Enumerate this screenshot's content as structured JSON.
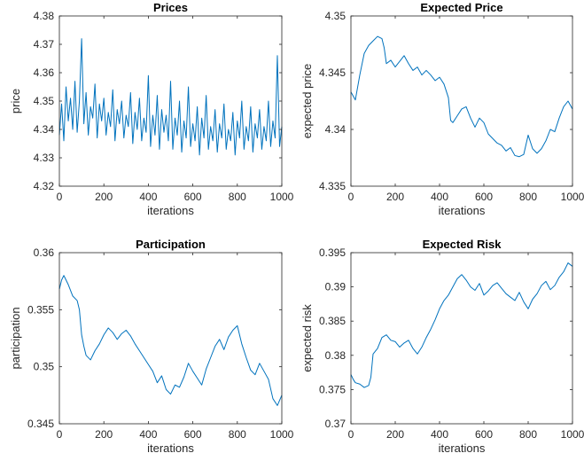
{
  "figure": {
    "line_color": "#0072BD",
    "background": "#ffffff"
  },
  "chart_data": [
    {
      "type": "line",
      "title": "Prices",
      "xlabel": "iterations",
      "ylabel": "price",
      "xlim": [
        0,
        1000
      ],
      "ylim": [
        4.32,
        4.38
      ],
      "xticks": [
        0,
        200,
        400,
        600,
        800,
        1000
      ],
      "xtick_labels": [
        "0",
        "200",
        "400",
        "600",
        "800",
        "1000"
      ],
      "yticks": [
        4.32,
        4.33,
        4.34,
        4.35,
        4.36,
        4.37,
        4.38
      ],
      "ytick_labels": [
        "4.32",
        "4.33",
        "4.34",
        "4.35",
        "4.36",
        "4.37",
        "4.38"
      ],
      "grid": false,
      "series": [
        {
          "x": [
            0,
            10,
            20,
            30,
            40,
            50,
            60,
            70,
            80,
            90,
            100,
            110,
            120,
            130,
            140,
            150,
            160,
            170,
            180,
            190,
            200,
            210,
            220,
            230,
            240,
            250,
            260,
            270,
            280,
            290,
            300,
            310,
            320,
            330,
            340,
            350,
            360,
            370,
            380,
            390,
            400,
            410,
            420,
            430,
            440,
            450,
            460,
            470,
            480,
            490,
            500,
            510,
            520,
            530,
            540,
            550,
            560,
            570,
            580,
            590,
            600,
            610,
            620,
            630,
            640,
            650,
            660,
            670,
            680,
            690,
            700,
            710,
            720,
            730,
            740,
            750,
            760,
            770,
            780,
            790,
            800,
            810,
            820,
            830,
            840,
            850,
            860,
            870,
            880,
            890,
            900,
            910,
            920,
            930,
            940,
            950,
            960,
            970,
            980,
            990,
            1000
          ],
          "values": [
            4.338,
            4.349,
            4.336,
            4.355,
            4.343,
            4.351,
            4.34,
            4.357,
            4.339,
            4.35,
            4.372,
            4.342,
            4.353,
            4.338,
            4.348,
            4.344,
            4.356,
            4.337,
            4.349,
            4.343,
            4.351,
            4.338,
            4.346,
            4.341,
            4.354,
            4.336,
            4.347,
            4.342,
            4.35,
            4.337,
            4.345,
            4.341,
            4.353,
            4.335,
            4.346,
            4.34,
            4.351,
            4.336,
            4.344,
            4.339,
            4.359,
            4.334,
            4.345,
            4.338,
            4.352,
            4.333,
            4.347,
            4.339,
            4.345,
            4.336,
            4.357,
            4.333,
            4.344,
            4.338,
            4.35,
            4.332,
            4.343,
            4.337,
            4.355,
            4.334,
            4.342,
            4.336,
            4.348,
            4.331,
            4.344,
            4.337,
            4.352,
            4.333,
            4.341,
            4.336,
            4.347,
            4.332,
            4.342,
            4.337,
            4.349,
            4.333,
            4.34,
            4.336,
            4.346,
            4.331,
            4.343,
            4.337,
            4.35,
            4.333,
            4.341,
            4.336,
            4.348,
            4.332,
            4.342,
            4.337,
            4.347,
            4.333,
            4.341,
            4.336,
            4.35,
            4.334,
            4.343,
            4.337,
            4.366,
            4.334,
            4.341
          ]
        }
      ]
    },
    {
      "type": "line",
      "title": "Expected Price",
      "xlabel": "iterations",
      "ylabel": "expected price",
      "xlim": [
        0,
        1000
      ],
      "ylim": [
        4.335,
        4.35
      ],
      "xticks": [
        0,
        200,
        400,
        600,
        800,
        1000
      ],
      "xtick_labels": [
        "0",
        "200",
        "400",
        "600",
        "800",
        "1000"
      ],
      "yticks": [
        4.335,
        4.34,
        4.345,
        4.35
      ],
      "ytick_labels": [
        "4.335",
        "4.34",
        "4.345",
        "4.35"
      ],
      "grid": false,
      "series": [
        {
          "x": [
            0,
            20,
            40,
            60,
            80,
            100,
            120,
            140,
            150,
            160,
            180,
            200,
            220,
            240,
            260,
            280,
            300,
            320,
            340,
            360,
            380,
            400,
            420,
            440,
            450,
            460,
            480,
            500,
            520,
            540,
            560,
            580,
            600,
            620,
            640,
            660,
            680,
            700,
            720,
            740,
            760,
            780,
            800,
            820,
            840,
            860,
            880,
            900,
            920,
            940,
            960,
            980,
            1000
          ],
          "values": [
            4.3433,
            4.3426,
            4.3448,
            4.3467,
            4.3474,
            4.3478,
            4.3482,
            4.348,
            4.3472,
            4.3458,
            4.3461,
            4.3455,
            4.346,
            4.3465,
            4.3458,
            4.3452,
            4.3455,
            4.3448,
            4.3452,
            4.3448,
            4.3443,
            4.3446,
            4.344,
            4.3428,
            4.3408,
            4.3406,
            4.3412,
            4.3418,
            4.342,
            4.341,
            4.3402,
            4.341,
            4.3406,
            4.3396,
            4.3392,
            4.3388,
            4.3386,
            4.3381,
            4.3384,
            4.3377,
            4.3376,
            4.3378,
            4.3395,
            4.3383,
            4.3379,
            4.3383,
            4.339,
            4.34,
            4.3398,
            4.341,
            4.342,
            4.3425,
            4.3418
          ]
        }
      ]
    },
    {
      "type": "line",
      "title": "Participation",
      "xlabel": "iterations",
      "ylabel": "participation",
      "xlim": [
        0,
        1000
      ],
      "ylim": [
        0.345,
        0.36
      ],
      "xticks": [
        0,
        200,
        400,
        600,
        800,
        1000
      ],
      "xtick_labels": [
        "0",
        "200",
        "400",
        "600",
        "800",
        "1000"
      ],
      "yticks": [
        0.345,
        0.35,
        0.355,
        0.36
      ],
      "ytick_labels": [
        "0.345",
        "0.35",
        "0.355",
        "0.36"
      ],
      "grid": false,
      "series": [
        {
          "x": [
            0,
            10,
            20,
            40,
            60,
            80,
            90,
            100,
            110,
            120,
            140,
            160,
            180,
            200,
            220,
            240,
            260,
            280,
            300,
            320,
            340,
            360,
            380,
            400,
            420,
            440,
            460,
            480,
            500,
            520,
            540,
            560,
            580,
            600,
            620,
            640,
            660,
            680,
            700,
            720,
            740,
            760,
            780,
            800,
            820,
            840,
            860,
            880,
            900,
            920,
            940,
            960,
            980,
            1000
          ],
          "values": [
            0.3568,
            0.3576,
            0.358,
            0.3572,
            0.3562,
            0.3558,
            0.355,
            0.3528,
            0.3518,
            0.351,
            0.3506,
            0.3514,
            0.352,
            0.3528,
            0.3534,
            0.353,
            0.3524,
            0.3529,
            0.3532,
            0.3527,
            0.352,
            0.3514,
            0.3508,
            0.3502,
            0.3496,
            0.3486,
            0.3492,
            0.348,
            0.3476,
            0.3484,
            0.3482,
            0.3491,
            0.3503,
            0.3496,
            0.349,
            0.3484,
            0.3498,
            0.3508,
            0.3518,
            0.3524,
            0.3515,
            0.3526,
            0.3532,
            0.3536,
            0.352,
            0.3508,
            0.3497,
            0.3493,
            0.3503,
            0.3496,
            0.3489,
            0.3472,
            0.3466,
            0.3475
          ]
        }
      ]
    },
    {
      "type": "line",
      "title": "Expected Risk",
      "xlabel": "iterations",
      "ylabel": "expected risk",
      "xlim": [
        0,
        1000
      ],
      "ylim": [
        0.37,
        0.395
      ],
      "xticks": [
        0,
        200,
        400,
        600,
        800,
        1000
      ],
      "xtick_labels": [
        "0",
        "200",
        "400",
        "600",
        "800",
        "1000"
      ],
      "yticks": [
        0.37,
        0.375,
        0.38,
        0.385,
        0.39,
        0.395
      ],
      "ytick_labels": [
        "0.37",
        "0.375",
        "0.38",
        "0.385",
        "0.39",
        "0.395"
      ],
      "grid": false,
      "series": [
        {
          "x": [
            0,
            10,
            20,
            40,
            60,
            80,
            90,
            100,
            120,
            140,
            160,
            180,
            200,
            220,
            240,
            260,
            280,
            300,
            320,
            340,
            360,
            380,
            400,
            420,
            440,
            460,
            480,
            500,
            520,
            540,
            560,
            580,
            600,
            620,
            640,
            660,
            680,
            700,
            720,
            740,
            760,
            780,
            800,
            820,
            840,
            860,
            880,
            900,
            920,
            940,
            960,
            980,
            1000
          ],
          "values": [
            0.3772,
            0.3765,
            0.376,
            0.3758,
            0.3753,
            0.3756,
            0.3768,
            0.3802,
            0.381,
            0.3826,
            0.383,
            0.3822,
            0.382,
            0.3812,
            0.3818,
            0.3822,
            0.381,
            0.3802,
            0.3812,
            0.3826,
            0.3838,
            0.3852,
            0.3868,
            0.388,
            0.3888,
            0.39,
            0.3912,
            0.3918,
            0.391,
            0.39,
            0.3895,
            0.3905,
            0.3888,
            0.3894,
            0.3902,
            0.3906,
            0.3898,
            0.389,
            0.3885,
            0.388,
            0.3892,
            0.3878,
            0.3868,
            0.3882,
            0.389,
            0.3902,
            0.3908,
            0.3896,
            0.3902,
            0.3914,
            0.3922,
            0.3935,
            0.393
          ]
        }
      ]
    }
  ]
}
